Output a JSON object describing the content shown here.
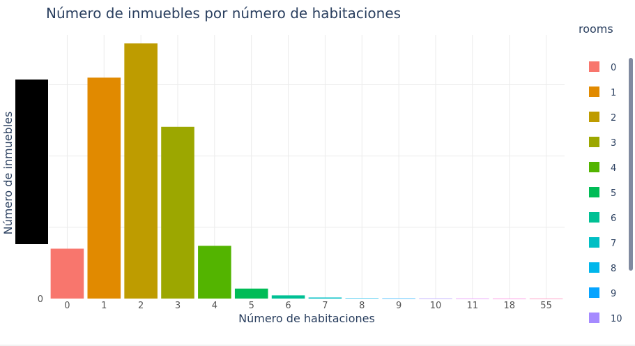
{
  "chart_data": {
    "type": "bar",
    "title": "Número de inmuebles por número de habitaciones",
    "xlabel": "Número de habitaciones",
    "ylabel": "Número de inmuebles",
    "categories": [
      "0",
      "1",
      "2",
      "3",
      "4",
      "5",
      "6",
      "7",
      "8",
      "9",
      "10",
      "11",
      "18",
      "55"
    ],
    "values": [
      700,
      3100,
      3580,
      2410,
      740,
      140,
      45,
      15,
      6,
      4,
      3,
      2,
      1,
      1
    ],
    "colors": [
      "#F8766D",
      "#E18A00",
      "#BE9C00",
      "#9CA700",
      "#53B400",
      "#00BC56",
      "#00C094",
      "#00BFC4",
      "#00B6EB",
      "#06A4FF",
      "#A58AFF",
      "#DF70F8",
      "#FB61D7",
      "#FF66A8"
    ],
    "ylim": [
      0,
      3700
    ],
    "y_tick_labels": [
      {
        "value": 0,
        "label": "0"
      }
    ],
    "grid": true,
    "legend": {
      "title": "rooms",
      "position": "right",
      "visible_entries": [
        "0",
        "1",
        "2",
        "3",
        "4",
        "5",
        "6",
        "7",
        "8",
        "9",
        "10"
      ]
    }
  }
}
